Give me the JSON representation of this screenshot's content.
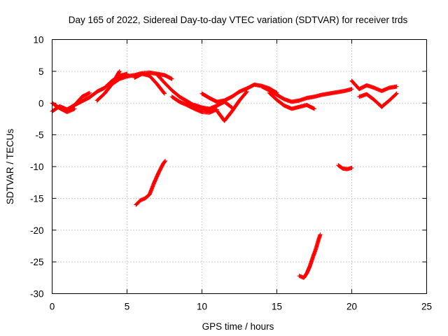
{
  "chart_data": {
    "type": "scatter",
    "title": "Day 165 of 2022, Sidereal Day-to-day VTEC variation (SDTVAR) for receiver trds",
    "xlabel": "GPS time / hours",
    "ylabel": "SDTVAR / TECUs",
    "xlim": [
      0,
      25
    ],
    "ylim": [
      -30,
      10
    ],
    "xticks": [
      0,
      5,
      10,
      15,
      20,
      25
    ],
    "yticks": [
      -30,
      -25,
      -20,
      -15,
      -10,
      -5,
      0,
      5,
      10
    ],
    "grid": true,
    "marker": "plus",
    "series": [
      {
        "name": "sdtvar",
        "color": "#ff0000",
        "tracks": [
          {
            "x": [
              0.0,
              0.5,
              1.0,
              1.5,
              2.0,
              2.5
            ],
            "y": [
              -1.3,
              -0.5,
              -1.0,
              -0.3,
              1.0,
              1.6
            ]
          },
          {
            "x": [
              0.0,
              0.5,
              1.0,
              1.5
            ],
            "y": [
              0.0,
              -0.8,
              -1.4,
              -0.9
            ]
          },
          {
            "x": [
              1.5,
              2.0,
              2.5,
              3.0,
              3.5,
              4.0,
              4.5,
              5.0
            ],
            "y": [
              -0.3,
              0.3,
              0.9,
              1.8,
              2.4,
              3.5,
              4.3,
              4.6
            ]
          },
          {
            "x": [
              3.0,
              3.5,
              4.0,
              4.5
            ],
            "y": [
              0.4,
              1.5,
              3.0,
              5.0
            ]
          },
          {
            "x": [
              4.0,
              4.5,
              5.0,
              5.5,
              6.0,
              6.5,
              7.0,
              7.5,
              8.0
            ],
            "y": [
              3.0,
              3.8,
              4.2,
              4.4,
              4.7,
              4.8,
              4.6,
              4.4,
              3.8
            ]
          },
          {
            "x": [
              5.5,
              6.0,
              6.5,
              7.0,
              7.5
            ],
            "y": [
              4.0,
              4.6,
              4.3,
              3.0,
              1.5
            ]
          },
          {
            "x": [
              7.0,
              7.5,
              8.0,
              8.5,
              9.0,
              9.5,
              10.0,
              10.5
            ],
            "y": [
              4.5,
              3.2,
              2.0,
              1.0,
              0.3,
              -0.4,
              -0.8,
              -1.2
            ]
          },
          {
            "x": [
              8.0,
              8.5,
              9.0,
              9.5,
              10.0,
              10.5,
              11.0
            ],
            "y": [
              1.0,
              0.2,
              -0.3,
              -0.9,
              -1.4,
              -1.5,
              -1.0
            ]
          },
          {
            "x": [
              10.0,
              10.5,
              11.0,
              11.5,
              12.0,
              12.5,
              13.0,
              13.5,
              14.0,
              14.5,
              15.0
            ],
            "y": [
              1.5,
              0.8,
              0.2,
              0.4,
              1.0,
              1.8,
              2.3,
              2.9,
              2.7,
              2.3,
              1.6
            ]
          },
          {
            "x": [
              11.0,
              11.5,
              12.0,
              12.5,
              13.0
            ],
            "y": [
              -1.2,
              -2.8,
              -1.3,
              0.4,
              1.8
            ]
          },
          {
            "x": [
              9.5,
              10.0,
              10.5,
              11.0,
              11.5,
              12.0
            ],
            "y": [
              -0.3,
              -0.7,
              -0.9,
              -0.4,
              0.2,
              -0.7
            ]
          },
          {
            "x": [
              14.0,
              14.5,
              15.0,
              15.5,
              16.0,
              16.5,
              17.0,
              17.5,
              18.0,
              18.5,
              19.0,
              19.5,
              20.0
            ],
            "y": [
              2.6,
              2.0,
              1.3,
              0.6,
              0.2,
              0.4,
              0.8,
              1.0,
              1.3,
              1.5,
              1.7,
              1.9,
              2.2
            ]
          },
          {
            "x": [
              14.5,
              15.0,
              15.5,
              16.0,
              16.5,
              17.0,
              17.5
            ],
            "y": [
              1.6,
              0.5,
              -0.4,
              -0.9,
              -0.6,
              -0.3,
              -0.9
            ]
          },
          {
            "x": [
              20.0,
              20.5,
              21.0,
              21.5,
              22.0,
              22.5,
              23.0
            ],
            "y": [
              3.5,
              2.2,
              2.8,
              2.4,
              1.9,
              2.4,
              2.6
            ]
          },
          {
            "x": [
              20.5,
              21.0,
              21.5,
              22.0,
              22.5,
              23.0
            ],
            "y": [
              1.0,
              1.4,
              0.5,
              -0.6,
              0.4,
              1.5
            ]
          },
          {
            "x": [
              5.6,
              5.9,
              6.2,
              6.5,
              6.8,
              7.1,
              7.4,
              7.55
            ],
            "y": [
              -16.0,
              -15.3,
              -15.0,
              -14.4,
              -12.6,
              -11.0,
              -9.6,
              -9.1
            ]
          },
          {
            "x": [
              16.5,
              16.8,
              17.0,
              17.2,
              17.4,
              17.6,
              17.8,
              17.9
            ],
            "y": [
              -27.2,
              -27.5,
              -26.8,
              -25.7,
              -24.3,
              -23.0,
              -21.4,
              -20.7
            ]
          },
          {
            "x": [
              19.1,
              19.4,
              19.7,
              20.0
            ],
            "y": [
              -9.8,
              -10.3,
              -10.4,
              -10.2
            ]
          }
        ]
      }
    ]
  }
}
